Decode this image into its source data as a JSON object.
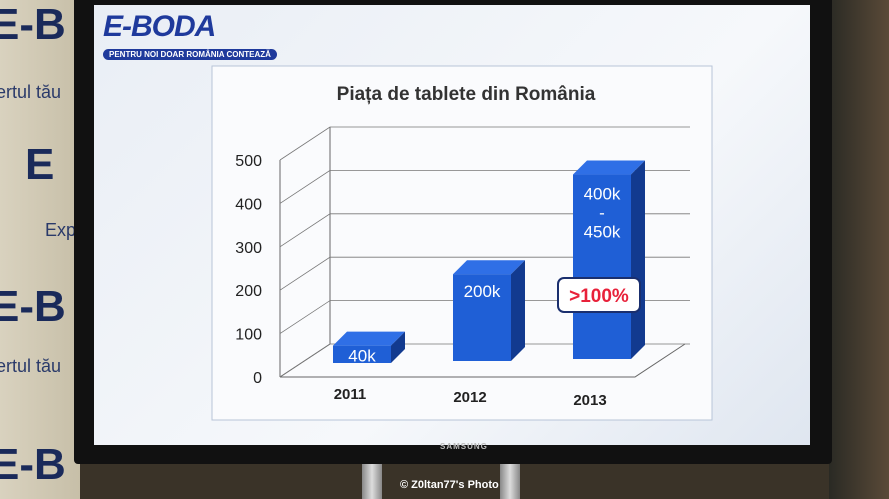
{
  "brand": {
    "logo": "E-BODA",
    "tagline": "PENTRU NOI DOAR ROMÂNIA CONTEAZĂ",
    "wall_text": "ertul tău",
    "wall_text2": "Expe"
  },
  "tv": {
    "brand": "SAMSUNG"
  },
  "footer": "© Z0ltan77's Photo",
  "chart_data": {
    "type": "bar",
    "title": "Piața de tablete din România",
    "categories": [
      "2011",
      "2012",
      "2013"
    ],
    "values": [
      40,
      200,
      425
    ],
    "value_range_2013": [
      400,
      450
    ],
    "data_labels": [
      "40k",
      "200k",
      "400k - 450k"
    ],
    "data_label_parts_2013": [
      "400k",
      "-",
      "450k"
    ],
    "annotation": ">100%",
    "yticks": [
      0,
      100,
      200,
      300,
      400,
      500
    ],
    "ylim": [
      0,
      500
    ],
    "grid": true,
    "style": "3d",
    "colors": {
      "bar": "#1f5fd6",
      "bar_side": "#123a8f",
      "annotation": "#e8213a"
    }
  }
}
